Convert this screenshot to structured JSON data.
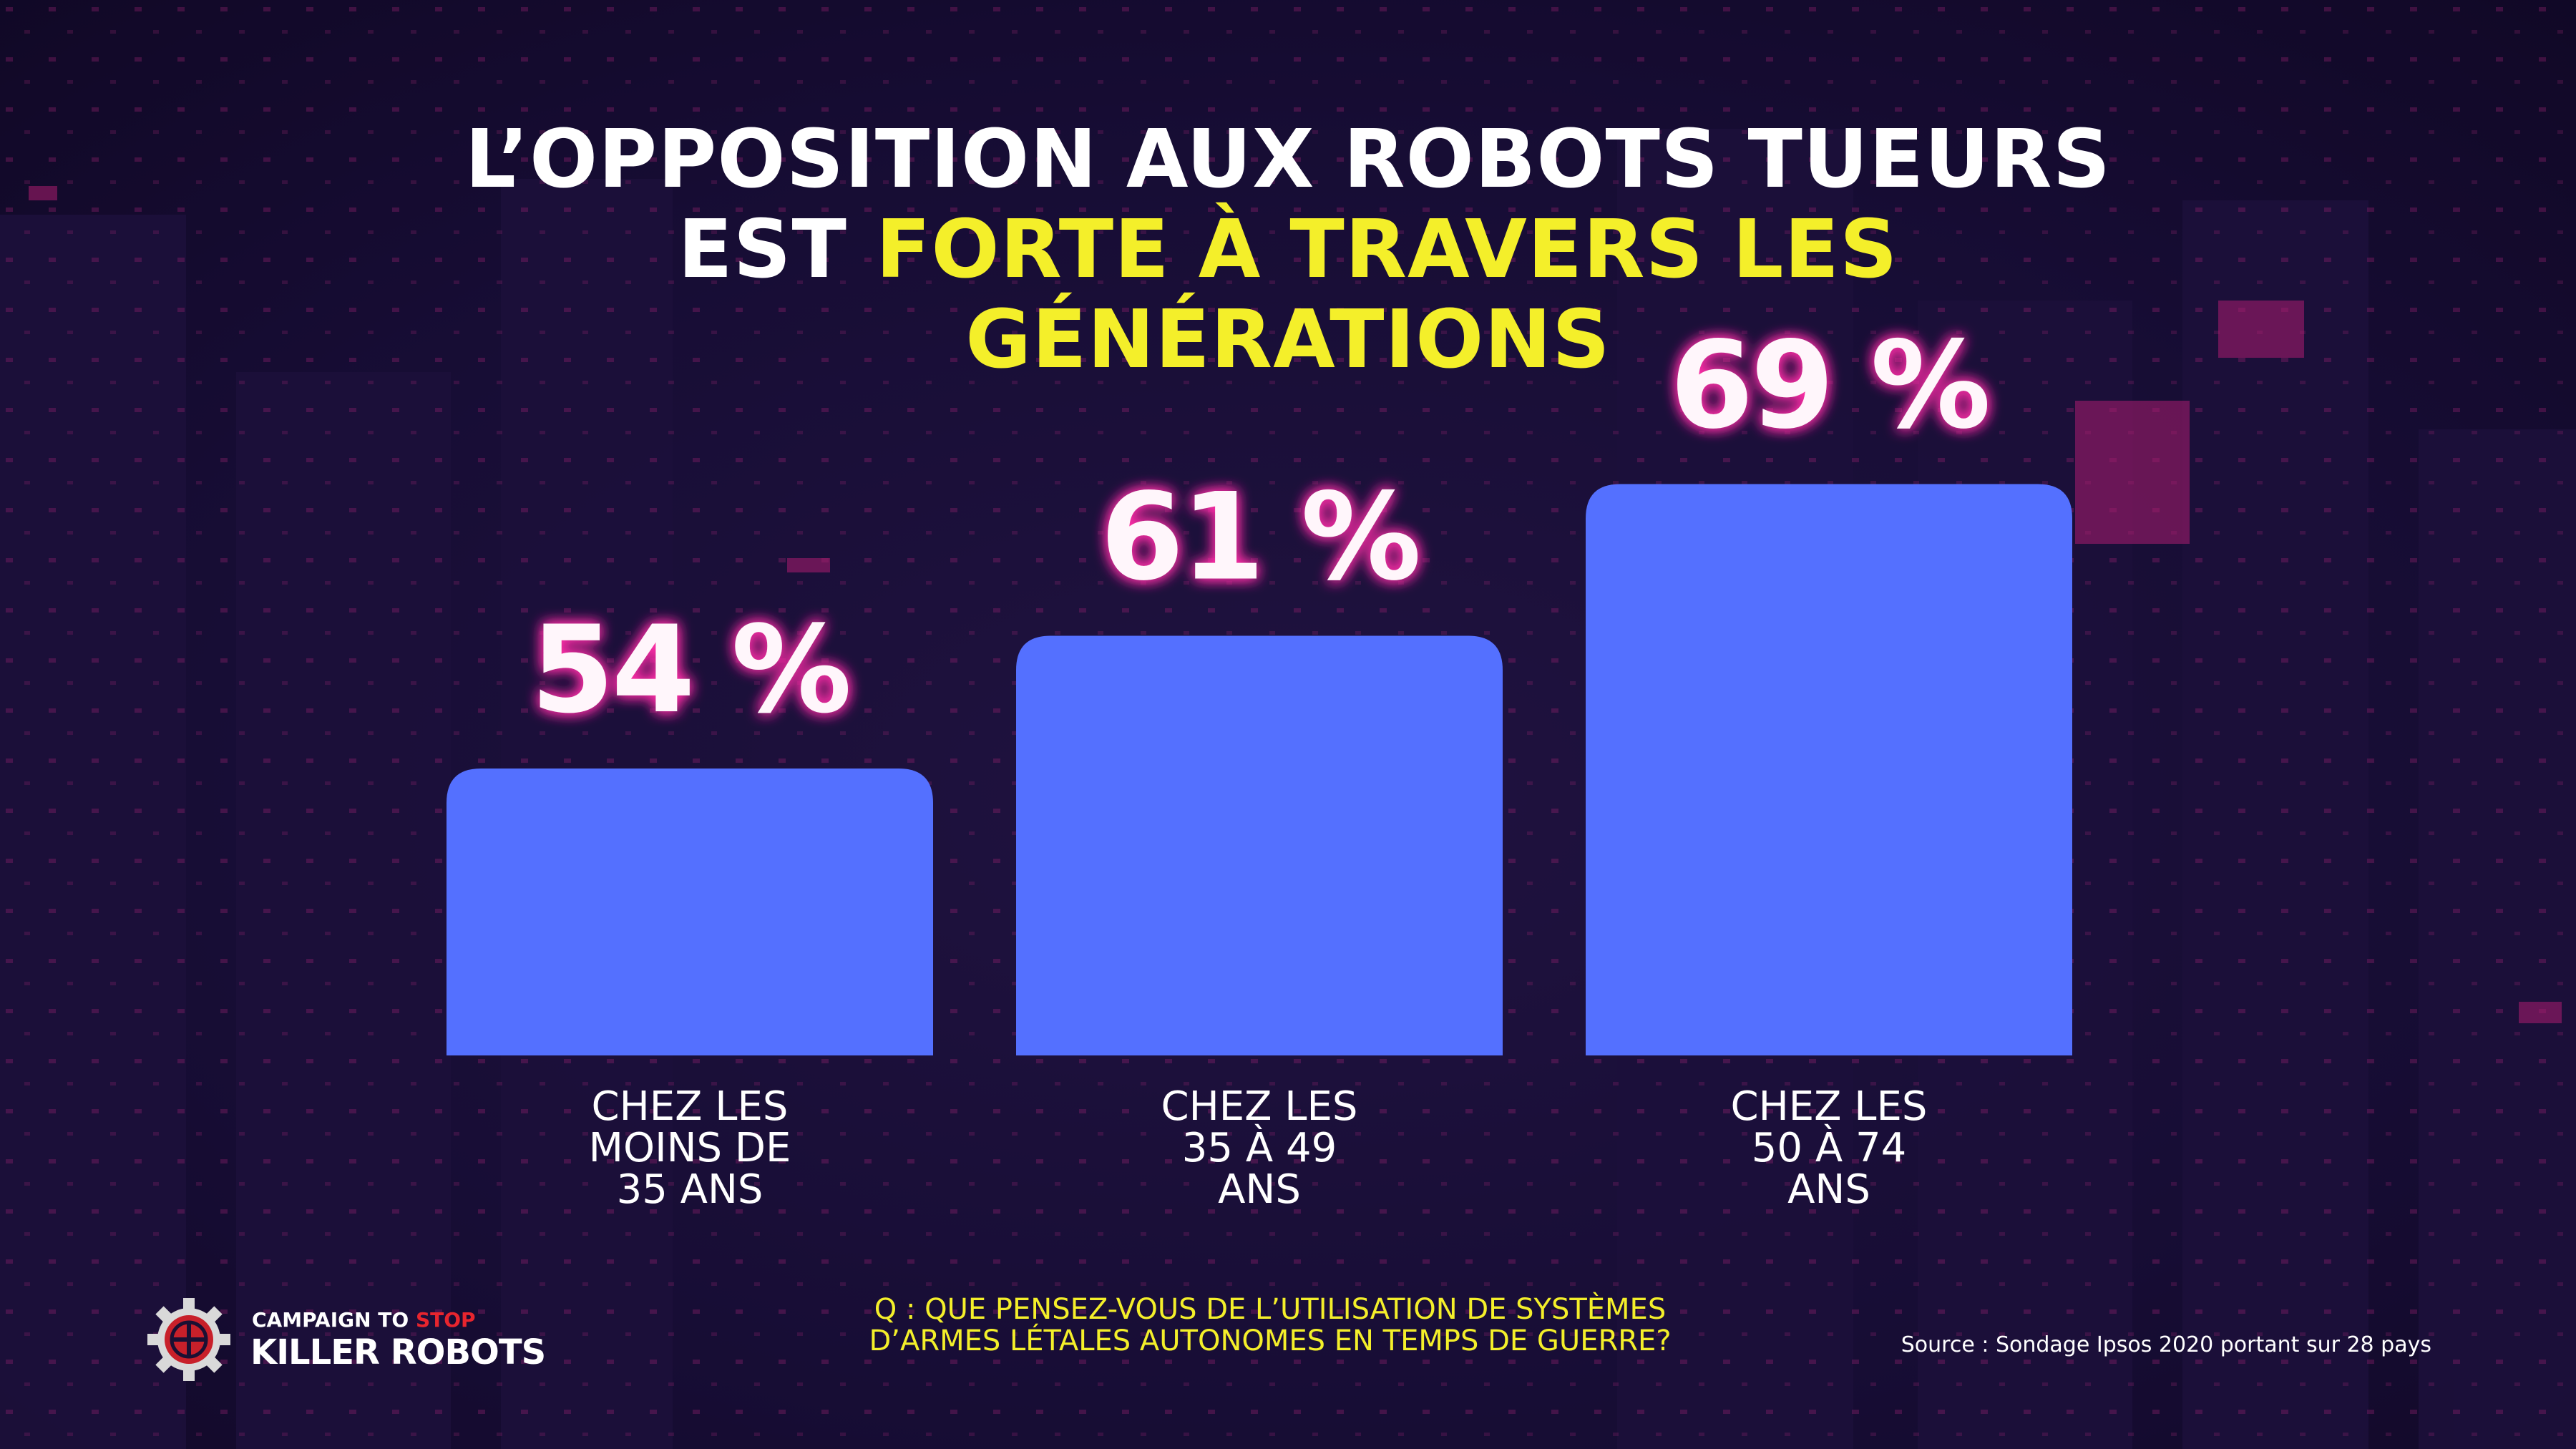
{
  "title": {
    "line1": "L’OPPOSITION AUX ROBOTS TUEURS",
    "line2_plain": "EST ",
    "line2_highlight": "FORTE À TRAVERS LES",
    "line3_highlight": "GÉNÉRATIONS"
  },
  "colors": {
    "bar": "#5470ff",
    "highlight": "#f4ef2a",
    "glow": "#ff2fa8",
    "background": "#1a1033",
    "logo_red": "#e8252e"
  },
  "chart_data": {
    "type": "bar",
    "categories": [
      [
        "CHEZ LES",
        "MOINS DE",
        "35 ANS"
      ],
      [
        "CHEZ LES",
        "35 À 49",
        "ANS"
      ],
      [
        "CHEZ LES",
        "50 À 74",
        "ANS"
      ]
    ],
    "values": [
      54,
      61,
      69
    ],
    "value_labels": [
      "54 %",
      "61 %",
      "69 %"
    ],
    "unit": "%",
    "grid": false,
    "legend": "none"
  },
  "question": {
    "line1": "Q : QUE PENSEZ-VOUS DE L’UTILISATION DE SYSTÈMES",
    "line2": "D’ARMES LÉTALES AUTONOMES EN TEMPS DE GUERRE?"
  },
  "source": "Source : Sondage Ipsos 2020 portant sur 28 pays",
  "logo": {
    "line1_a": "CAMPAIGN TO ",
    "line1_b": "STOP",
    "line2": "KILLER ROBOTS",
    "icon": "gear-logo-icon"
  }
}
